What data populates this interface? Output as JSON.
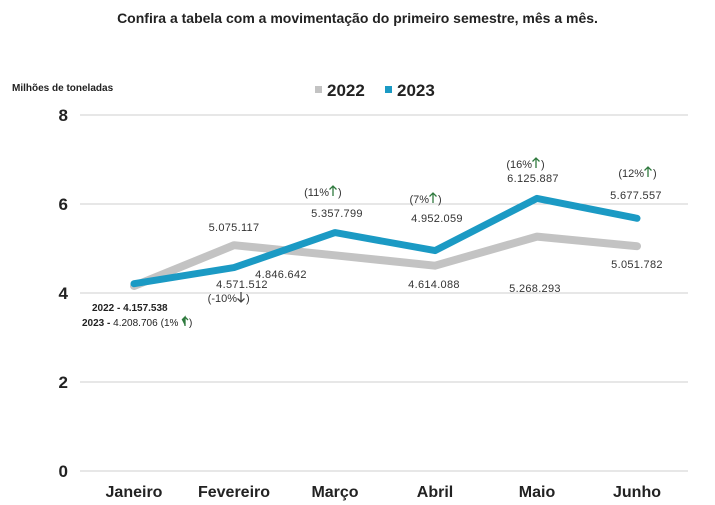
{
  "caption": "Confira a tabela com a movimentação do primeiro semestre, mês a mês.",
  "chart_data": {
    "type": "line",
    "ylabel": "Milhões de toneladas",
    "ylim": [
      0,
      8
    ],
    "yticks": [
      0,
      2,
      4,
      6,
      8
    ],
    "grid": true,
    "legend_position": "top",
    "categories": [
      "Janeiro",
      "Fevereiro",
      "Março",
      "Abril",
      "Maio",
      "Junho"
    ],
    "series": [
      {
        "name": "2022",
        "color": "#c3c3c3",
        "values": [
          4.157538,
          5.075117,
          4.846642,
          4.614088,
          5.268293,
          5.051782
        ],
        "labels": [
          "4.157.538",
          "5.075.117",
          "4.846.642",
          "4.614.088",
          "5.268.293",
          "5.051.782"
        ]
      },
      {
        "name": "2023",
        "color": "#1b9ac4",
        "values": [
          4.208706,
          4.571512,
          5.357799,
          4.952059,
          6.125887,
          5.677557
        ],
        "labels": [
          "4.208.706",
          "4.571.512",
          "5.357.799",
          "4.952.059",
          "6.125.887",
          "5.677.557"
        ],
        "changes": [
          "1%",
          "-10%",
          "11%",
          "7%",
          "16%",
          "12%"
        ],
        "direction": [
          "up",
          "down",
          "up",
          "up",
          "up",
          "up"
        ]
      }
    ],
    "annotations": {
      "start_2022": "2022 - 4.157.538",
      "start_2023_prefix": "2023 - ",
      "start_2023_value": "4.208.706",
      "start_2023_change": "(1%"
    }
  }
}
